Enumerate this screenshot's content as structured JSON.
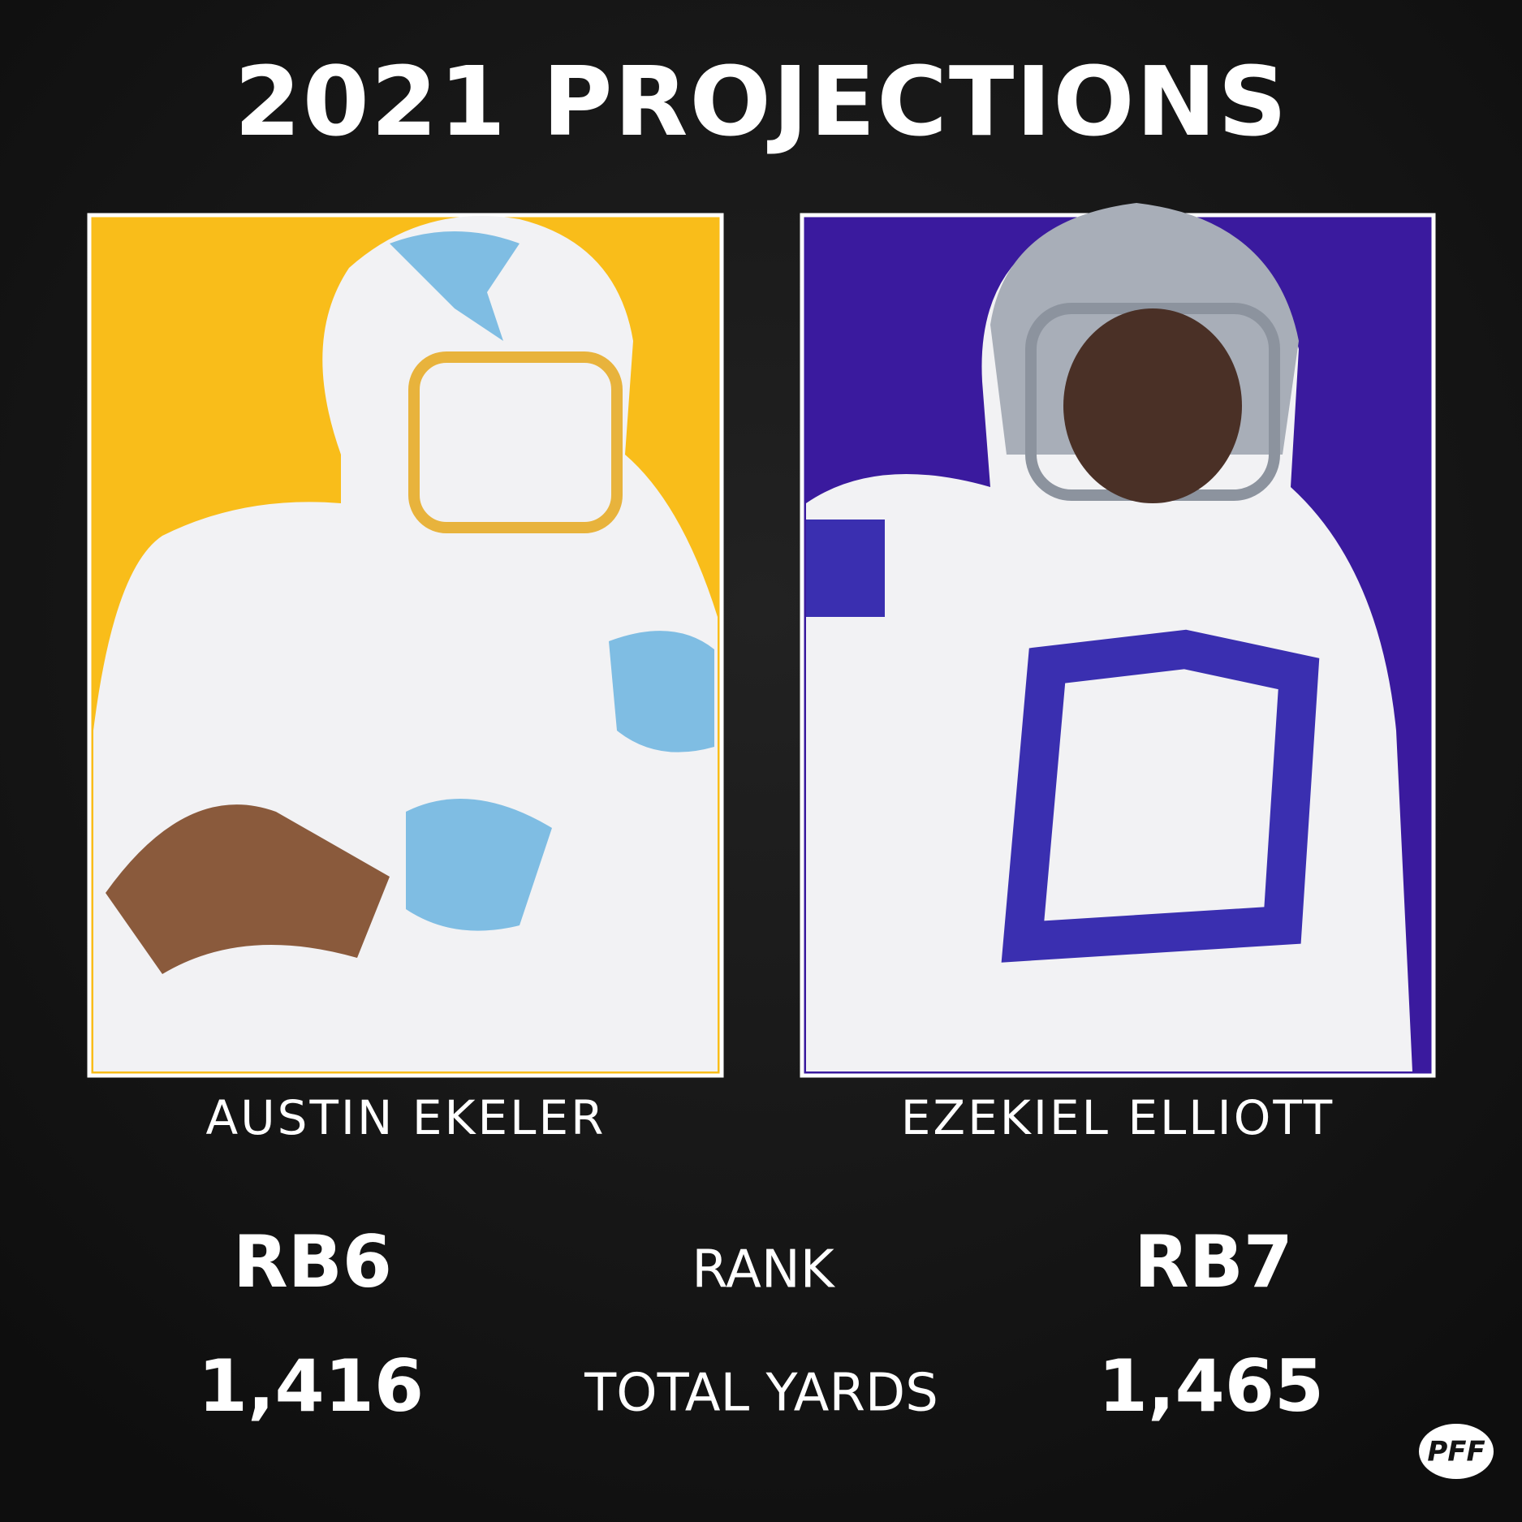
{
  "title": "2021 PROJECTIONS",
  "players": [
    {
      "name": "AUSTIN EKELER",
      "rank": "RB6",
      "total_yards": "1,416"
    },
    {
      "name": "EZEKIEL ELLIOTT",
      "rank": "RB7",
      "total_yards": "1,465"
    }
  ],
  "stat_labels": [
    "RANK",
    "TOTAL YARDS"
  ],
  "logo": "PFF"
}
